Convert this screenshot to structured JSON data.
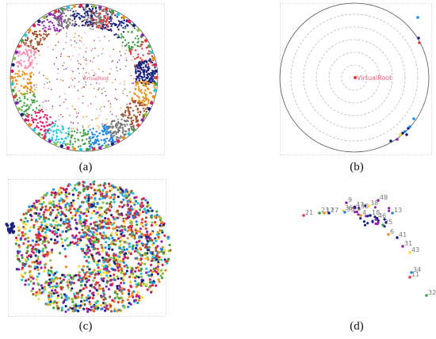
{
  "figure": {
    "panels": [
      {
        "id": "a",
        "caption": "(a)",
        "center_label": "VirtualRoot"
      },
      {
        "id": "b",
        "caption": "(b)",
        "center_label": "VirtualRoot"
      },
      {
        "id": "c",
        "caption": "(c)"
      },
      {
        "id": "d",
        "caption": "(d)"
      }
    ],
    "colors": {
      "root_label": "#e0607a",
      "navy": "#1a237e",
      "orange": "#e8901a",
      "red": "#e53935",
      "green": "#43a047",
      "cyan": "#26c6da",
      "yellow": "#fdd835",
      "pink": "#f48fb1",
      "purple": "#8e24aa",
      "brown": "#a0522d",
      "gray": "#7a7a7a",
      "blue": "#1e88e5",
      "magenta": "#d81b60",
      "lime": "#8bc34a",
      "circle_outline": "#555555",
      "guide_circle": "#bbbbbb"
    },
    "panel_d_labels": [
      "21",
      "23",
      "17",
      "27",
      "9",
      "36",
      "35",
      "47",
      "30",
      "4",
      "18",
      "48",
      "38",
      "13",
      "46",
      "25",
      "6",
      "41",
      "31",
      "43",
      "34",
      "11",
      "32"
    ]
  }
}
